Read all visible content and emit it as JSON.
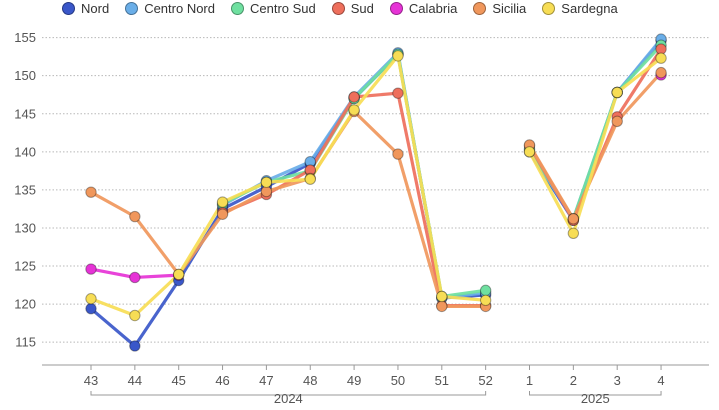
{
  "chart_data": {
    "type": "line",
    "categories": [
      "43",
      "44",
      "45",
      "46",
      "47",
      "48",
      "49",
      "50",
      "51",
      "52",
      "1",
      "2",
      "3",
      "4"
    ],
    "year_groups": [
      {
        "label": "2024",
        "from": 0,
        "to": 9
      },
      {
        "label": "2025",
        "from": 10,
        "to": 13
      }
    ],
    "ylim": [
      112,
      156
    ],
    "yticks": [
      115,
      120,
      125,
      130,
      135,
      140,
      145,
      150,
      155
    ],
    "grid": true,
    "legend_position": "top-left",
    "series": [
      {
        "name": "Nord",
        "color": "#3a57c9",
        "values": [
          119.4,
          114.5,
          123.1,
          132.5,
          135.4,
          138.5,
          147.0,
          152.8,
          120.8,
          121.2,
          140.0,
          131.0,
          147.8,
          154.6
        ]
      },
      {
        "name": "Centro Nord",
        "color": "#6aaee8",
        "values": [
          null,
          null,
          null,
          133.0,
          136.2,
          138.7,
          147.2,
          153.0,
          120.8,
          121.5,
          140.2,
          131.2,
          147.8,
          154.8
        ]
      },
      {
        "name": "Centro Sud",
        "color": "#6fe0a0",
        "values": [
          null,
          null,
          null,
          133.2,
          136.0,
          137.5,
          147.0,
          152.8,
          121.0,
          121.8,
          140.4,
          131.2,
          147.8,
          154.0
        ]
      },
      {
        "name": "Sud",
        "color": "#ee6f5c",
        "values": [
          null,
          null,
          null,
          132.0,
          134.4,
          137.6,
          147.2,
          147.7,
          119.8,
          119.8,
          140.8,
          131.0,
          144.6,
          153.5
        ]
      },
      {
        "name": "Calabria",
        "color": "#e633d6",
        "values": [
          124.6,
          123.5,
          123.8,
          null,
          null,
          null,
          null,
          null,
          null,
          null,
          null,
          null,
          null,
          150.1
        ]
      },
      {
        "name": "Sicilia",
        "color": "#f0975c",
        "values": [
          134.7,
          131.5,
          123.9,
          131.8,
          134.8,
          136.5,
          145.3,
          139.7,
          119.7,
          119.7,
          140.9,
          131.2,
          144.0,
          150.4
        ]
      },
      {
        "name": "Sardegna",
        "color": "#f7dd55",
        "values": [
          120.7,
          118.5,
          123.9,
          133.4,
          136.0,
          136.4,
          145.5,
          152.6,
          121.0,
          120.5,
          140.0,
          129.3,
          147.8,
          152.3
        ]
      }
    ]
  }
}
